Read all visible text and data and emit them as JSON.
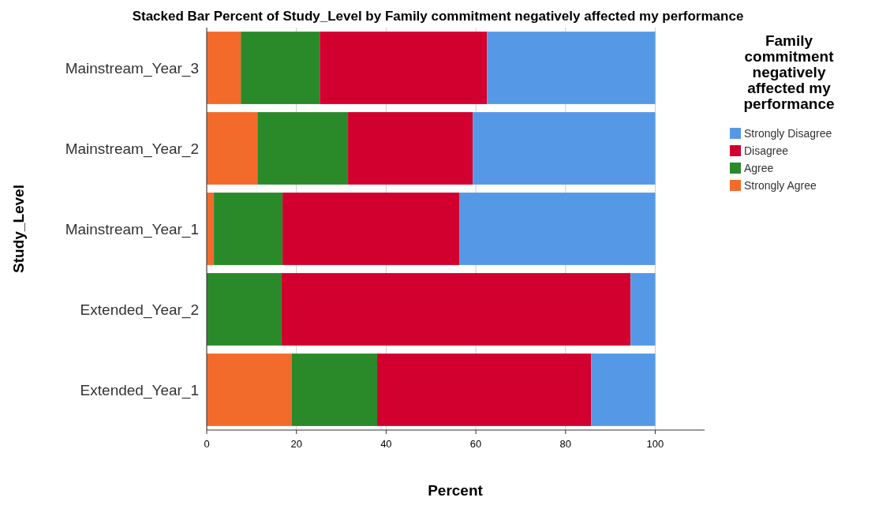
{
  "chart_data": {
    "type": "bar",
    "orientation": "horizontal",
    "stacked": true,
    "title": "Stacked Bar Percent of Study_Level by Family commitment negatively affected my performance",
    "xlabel": "Percent",
    "ylabel": "Study_Level",
    "legend_title": "Family commitment negatively affected my performance",
    "categories": [
      "Mainstream_Year_3",
      "Mainstream_Year_2",
      "Mainstream_Year_1",
      "Extended_Year_2",
      "Extended_Year_1"
    ],
    "series": [
      {
        "name": "Strongly Agree",
        "color": "#f26b2b",
        "values": [
          7.6,
          11.3,
          1.6,
          0,
          19.0
        ]
      },
      {
        "name": "Agree",
        "color": "#2a8a2a",
        "values": [
          17.6,
          20.2,
          15.3,
          16.7,
          19.0
        ]
      },
      {
        "name": "Disagree",
        "color": "#d2002f",
        "values": [
          37.3,
          27.8,
          39.4,
          77.8,
          47.7
        ]
      },
      {
        "name": "Strongly Disagree",
        "color": "#5599e6",
        "values": [
          37.5,
          40.7,
          43.7,
          5.5,
          14.3
        ]
      }
    ],
    "xlim": [
      0,
      111
    ],
    "xticks": [
      0,
      20,
      40,
      60,
      80,
      100
    ],
    "grid": "x",
    "legend": "right"
  }
}
